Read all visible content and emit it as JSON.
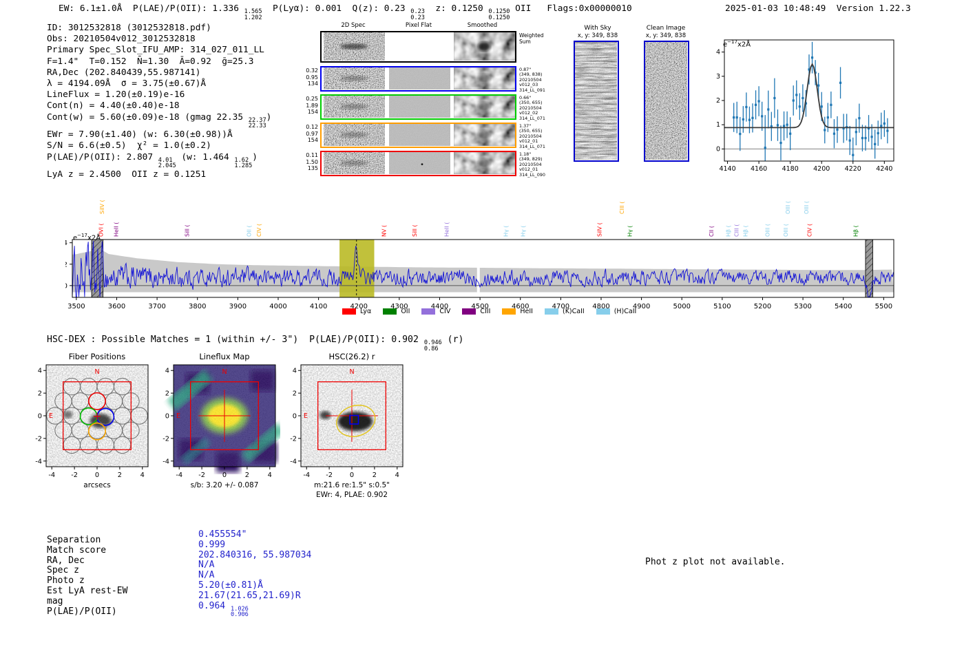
{
  "header": {
    "segments": [
      {
        "t": "EW: 6.1±1.0Å  P(LAE)/P(OII): 1.336 "
      },
      {
        "frac": [
          "1.565",
          "1.202"
        ]
      },
      {
        "t": "  P(Lyα): 0.001  Q(z): 0.23 "
      },
      {
        "frac": [
          "0.23",
          "0.23"
        ]
      },
      {
        "t": "  z: 0.1250 "
      },
      {
        "frac": [
          "0.1250",
          "0.1250"
        ]
      },
      {
        "t": " OII   Flags:0x00000010"
      }
    ],
    "timestamp_version": "2025-01-03 10:48:49  Version 1.22.3"
  },
  "info_lines": [
    [
      {
        "t": "ID: 3012532818 (3012532818.pdf)"
      }
    ],
    [
      {
        "t": "Obs: 20210504v012_3012532818"
      }
    ],
    [
      {
        "t": "Primary Spec_Slot_IFU_AMP: 314_027_011_LL"
      }
    ],
    [
      {
        "t": "F=1.4\"  T=0.152  N̄=1.30  Ā=0.92  ḡ=25.3"
      }
    ],
    [
      {
        "t": "RA,Dec (202.840439,55.987141)"
      }
    ],
    [
      {
        "t": "λ = 4194.09Å  σ = 3.75(±0.67)Å"
      }
    ],
    [
      {
        "t": "LineFlux = 1.20(±0.19)e-16"
      }
    ],
    [
      {
        "t": "Cont(n) = 4.40(±0.40)e-18"
      }
    ],
    [
      {
        "t": "Cont(w) = 5.60(±0.09)e-18 (gmag 22.35 "
      },
      {
        "frac": [
          "22.37",
          "22.33"
        ]
      },
      {
        "t": ")"
      }
    ],
    [
      {
        "t": "EWr = 7.90(±1.40) (w: 6.30(±0.98))Å"
      }
    ],
    [
      {
        "t": "S/N = 6.6(±0.5)  χ² = 1.0(±0.2)"
      }
    ],
    [
      {
        "t": "P(LAE)/P(OII): 2.807 "
      },
      {
        "frac": [
          "4.01",
          "2.045"
        ]
      },
      {
        "t": " (w: 1.464 "
      },
      {
        "frac": [
          "1.62",
          "1.285"
        ]
      },
      {
        "t": ")"
      }
    ],
    [
      {
        "t": "LyA z = 2.4500  OII z = 0.1251"
      }
    ]
  ],
  "spec2d": {
    "col_headers": [
      "2D Spec",
      "Pixel Flat",
      "Smoothed"
    ],
    "rows": [
      {
        "border": "#000000",
        "left": [],
        "right": [
          "Weighted",
          "Sum"
        ],
        "right_size": "7.5px"
      },
      {
        "border": "#0000ee",
        "left": [
          "0.32",
          "0.95",
          "134"
        ],
        "right": [
          "0.87\"",
          "(349, 838)",
          "20210504",
          "v012_03",
          "314_LL_091"
        ]
      },
      {
        "border": "#00cc00",
        "left": [
          "0.25",
          "1.89",
          "154"
        ],
        "right": [
          "0.66\"",
          "(350, 655)",
          "20210504",
          "v012_02",
          "314_LL_071"
        ]
      },
      {
        "border": "#ff9d00",
        "left": [
          "0.12",
          "0.97",
          "154"
        ],
        "right": [
          "1.37\"",
          "(350, 655)",
          "20210504",
          "v012_01",
          "314_LL_071"
        ]
      },
      {
        "border": "#ee0000",
        "left": [
          "0.11",
          "1.50",
          "135"
        ],
        "right": [
          "1.18\"",
          "(349, 829)",
          "20210504",
          "v012_01",
          "314_LL_090"
        ]
      }
    ]
  },
  "with_sky": {
    "title": "With Sky",
    "coords": "x, y: 349, 838"
  },
  "clean_image": {
    "title": "Clean Image",
    "coords": "x, y: 349, 838"
  },
  "unit_label": {
    "pre": "e",
    "exp": "−17",
    "post": "x2Å"
  },
  "chart_data": [
    {
      "type": "scatter",
      "name": "line-fit-zoom",
      "xlim": [
        4138,
        4246
      ],
      "ylim": [
        -0.5,
        4.5
      ],
      "xticks": [
        4140,
        4160,
        4180,
        4200,
        4220,
        4240
      ],
      "yticks": [
        0,
        1,
        2,
        3,
        4
      ],
      "ylabel": "e-17 x2Å",
      "point_color": "#1f77b4",
      "fit_color": "#3a3a3a",
      "fit": {
        "center": 4194,
        "sigma": 3.2,
        "amplitude": 2.62,
        "baseline": 0.88
      },
      "points": [
        [
          4144,
          1.3,
          0.6
        ],
        [
          4146,
          1.3,
          0.65
        ],
        [
          4148,
          0.62,
          0.7
        ],
        [
          4150,
          1.22,
          0.55
        ],
        [
          4152,
          1.73,
          0.6
        ],
        [
          4154,
          1.2,
          0.55
        ],
        [
          4156,
          1.28,
          0.6
        ],
        [
          4158,
          1.82,
          0.6
        ],
        [
          4160,
          1.97,
          0.62
        ],
        [
          4162,
          1.35,
          0.6
        ],
        [
          4164,
          0.05,
          1.35
        ],
        [
          4166,
          1.63,
          0.78
        ],
        [
          4168,
          0.93,
          0.6
        ],
        [
          4170,
          2.1,
          0.82
        ],
        [
          4172,
          0.98,
          0.65
        ],
        [
          4174,
          0.25,
          0.72
        ],
        [
          4176,
          0.95,
          0.6
        ],
        [
          4178,
          1.0,
          0.55
        ],
        [
          4180,
          0.63,
          0.68
        ],
        [
          4182,
          2.0,
          0.62
        ],
        [
          4184,
          2.23,
          0.6
        ],
        [
          4186,
          1.75,
          0.55
        ],
        [
          4188,
          2.1,
          0.57
        ],
        [
          4190,
          1.88,
          0.55
        ],
        [
          4192,
          3.28,
          0.62
        ],
        [
          4194,
          3.77,
          0.65
        ],
        [
          4196,
          3.15,
          0.52
        ],
        [
          4198,
          2.62,
          0.52
        ],
        [
          4200,
          1.75,
          0.6
        ],
        [
          4202,
          0.78,
          0.55
        ],
        [
          4204,
          1.3,
          0.6
        ],
        [
          4206,
          1.82,
          0.55
        ],
        [
          4208,
          0.63,
          0.6
        ],
        [
          4210,
          0.8,
          0.55
        ],
        [
          4212,
          2.73,
          0.65
        ],
        [
          4214,
          0.85,
          0.6
        ],
        [
          4216,
          0.9,
          0.55
        ],
        [
          4218,
          0.35,
          0.6
        ],
        [
          4220,
          -0.25,
          0.72
        ],
        [
          4222,
          0.7,
          0.55
        ],
        [
          4224,
          1.27,
          0.6
        ],
        [
          4226,
          0.45,
          0.55
        ],
        [
          4228,
          0.45,
          0.52
        ],
        [
          4230,
          0.85,
          0.55
        ],
        [
          4232,
          0.5,
          0.52
        ],
        [
          4234,
          0.2,
          0.6
        ],
        [
          4236,
          0.65,
          0.52
        ],
        [
          4238,
          0.95,
          0.55
        ],
        [
          4240,
          1.05,
          0.55
        ],
        [
          4242,
          0.75,
          0.52
        ]
      ]
    },
    {
      "type": "line",
      "name": "full-spectrum",
      "xlim": [
        3490,
        5525
      ],
      "ylim": [
        -1.1,
        4.3
      ],
      "xticks": [
        3500,
        3600,
        3700,
        3800,
        3900,
        4000,
        4100,
        4200,
        4300,
        4400,
        4500,
        4600,
        4700,
        4800,
        4900,
        5000,
        5100,
        5200,
        5300,
        5400,
        5500
      ],
      "yticks": [
        0,
        2,
        4
      ],
      "line_color": "#1212d6",
      "envelope_color": "#c9c9c9",
      "envelope": [
        [
          3495,
          2.9
        ],
        [
          3520,
          3.1
        ],
        [
          3560,
          3.4
        ],
        [
          3580,
          2.95
        ],
        [
          3650,
          2.55
        ],
        [
          3750,
          2.2
        ],
        [
          3850,
          2.0
        ],
        [
          3950,
          1.9
        ],
        [
          4050,
          1.85
        ],
        [
          4150,
          1.8
        ],
        [
          4250,
          1.75
        ],
        [
          4350,
          1.7
        ],
        [
          4450,
          1.68
        ],
        [
          4550,
          1.65
        ],
        [
          4650,
          1.62
        ],
        [
          4750,
          1.6
        ],
        [
          4850,
          1.58
        ],
        [
          4950,
          1.55
        ],
        [
          5050,
          1.52
        ],
        [
          5150,
          1.5
        ],
        [
          5250,
          1.48
        ],
        [
          5350,
          1.45
        ],
        [
          5450,
          1.45
        ],
        [
          5525,
          1.5
        ]
      ],
      "envelope_lower": -0.62,
      "envelope_gap_x": 4496,
      "highlight": {
        "x0": 4152,
        "x1": 4238,
        "line": 4194,
        "color": "rgba(184,184,32,0.88)"
      },
      "masked_bands": [
        [
          3538,
          3566
        ],
        [
          5455,
          5473
        ]
      ],
      "noise": {
        "seed": 1234,
        "base": 0.75,
        "amp_frac": 0.5,
        "spike_x1": 3566,
        "dip_x": 5464
      },
      "emission_labels": [
        {
          "label": "SiIV (",
          "wave": 3564,
          "c": "heii",
          "high": true
        },
        {
          "label": "OVI (",
          "wave": 3562,
          "c": "lya"
        },
        {
          "label": "HeII (",
          "wave": 3599,
          "c": "ciii"
        },
        {
          "label": "SiII (",
          "wave": 3775,
          "c": "ciii"
        },
        {
          "label": "OII (",
          "wave": 3928,
          "c": "caii"
        },
        {
          "label": "CIV (",
          "wave": 3953,
          "c": "heii"
        },
        {
          "label": "NV (",
          "wave": 4263,
          "c": "lya"
        },
        {
          "label": "SiII (",
          "wave": 4339,
          "c": "lya"
        },
        {
          "label": "HeII (",
          "wave": 4418,
          "c": "civ"
        },
        {
          "label": "Hγ (",
          "wave": 4565,
          "c": "caii"
        },
        {
          "label": "Hγ (",
          "wave": 4607,
          "c": "caii"
        },
        {
          "label": "SiIV (",
          "wave": 4797,
          "c": "lya"
        },
        {
          "label": "CIII (",
          "wave": 4852,
          "c": "heii",
          "high": true
        },
        {
          "label": "Hγ (",
          "wave": 4872,
          "c": "oii"
        },
        {
          "label": "CII (",
          "wave": 5074,
          "c": "ciii"
        },
        {
          "label": "Hβ (",
          "wave": 5116,
          "c": "caii"
        },
        {
          "label": "CIII (",
          "wave": 5136,
          "c": "civ"
        },
        {
          "label": "Hβ (",
          "wave": 5158,
          "c": "caii"
        },
        {
          "label": "OIII (",
          "wave": 5213,
          "c": "caii"
        },
        {
          "label": "OIII (",
          "wave": 5258,
          "c": "caii"
        },
        {
          "label": "OIII (",
          "wave": 5263,
          "c": "caii",
          "high": true
        },
        {
          "label": "OIII (",
          "wave": 5309,
          "c": "caii",
          "high": true
        },
        {
          "label": "CIV (",
          "wave": 5317,
          "c": "lya"
        },
        {
          "label": "Hβ (",
          "wave": 5431,
          "c": "oii"
        }
      ],
      "line_colors": {
        "lya": "#ff0000",
        "oii": "#008000",
        "civ": "#9370db",
        "ciii": "#800080",
        "heii": "#ffa500",
        "caii": "#87ceeb"
      },
      "legend": [
        {
          "label": "Lyα",
          "color": "#ff0000"
        },
        {
          "label": "OII",
          "color": "#008000"
        },
        {
          "label": "CIV",
          "color": "#9370db"
        },
        {
          "label": "CIII",
          "color": "#800080"
        },
        {
          "label": "HeII",
          "color": "#ffa500"
        },
        {
          "label": "(K)CaII",
          "color": "#87ceeb"
        },
        {
          "label": "(H)CaII",
          "color": "#87ceeb"
        }
      ]
    }
  ],
  "hsc_line": {
    "segments": [
      {
        "t": "HSC-DEX : Possible Matches = 1 (within +/- 3\")  P(LAE)/P(OII): 0.902 "
      },
      {
        "frac": [
          "0.946",
          "0.86"
        ]
      },
      {
        "t": " (r)"
      }
    ]
  },
  "cutouts": {
    "ticks": [
      -4,
      -2,
      0,
      2,
      4
    ],
    "north_label": "N",
    "east_label": "E",
    "fiber": {
      "title": "Fiber Positions",
      "xlabel": "arcsecs"
    },
    "lineflux": {
      "title": "Lineflux Map",
      "xlabel": "s/b: 3.20 +/- 0.087"
    },
    "hsc": {
      "title": "HSC(26.2) r",
      "xlabel": "m:21.6  re:1.5\"  s:0.5\"",
      "xlabel2": "EWr: 4, PLAE: 0.902"
    }
  },
  "match_table": {
    "rows": [
      {
        "label": "Separation",
        "value": "0.455554\""
      },
      {
        "label": "Match score",
        "value": "0.999"
      },
      {
        "label": "RA, Dec",
        "value": "202.840316, 55.987034"
      },
      {
        "label": "Spec z",
        "value": "N/A"
      },
      {
        "label": "Photo z",
        "value": "N/A"
      },
      {
        "label": "Est LyA rest-EW",
        "value": "5.20(±0.81)Å"
      },
      {
        "label": "mag",
        "value": "21.67(21.65,21.69)R"
      },
      {
        "label": "P(LAE)/P(OII)",
        "value": "0.964 ",
        "frac": [
          "1.026",
          "0.906"
        ]
      }
    ]
  },
  "phot_z_note": "Phot z plot not available."
}
